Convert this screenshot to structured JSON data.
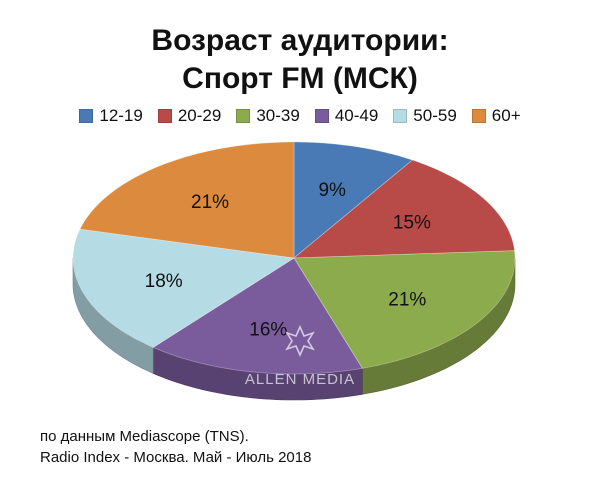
{
  "chart_data": {
    "type": "pie",
    "title": [
      "Возраст аудитории:",
      "Спорт FM (МСК)"
    ],
    "categories": [
      "12-19",
      "20-29",
      "30-39",
      "40-49",
      "50-59",
      "60+"
    ],
    "values": [
      9,
      15,
      21,
      16,
      18,
      21
    ],
    "data_labels": [
      "9%",
      "15%",
      "21%",
      "16%",
      "18%",
      "21%"
    ],
    "colors": [
      "#4a7ab5",
      "#b84a48",
      "#8cab4c",
      "#7a5c9d",
      "#b5dbe4",
      "#dc8a3e"
    ],
    "legend_position": "top"
  },
  "watermark": "ALLEN MEDIA",
  "source": [
    "по данным Mediascope (TNS).",
    "Radio Index - Москва. Май - Июль 2018"
  ]
}
